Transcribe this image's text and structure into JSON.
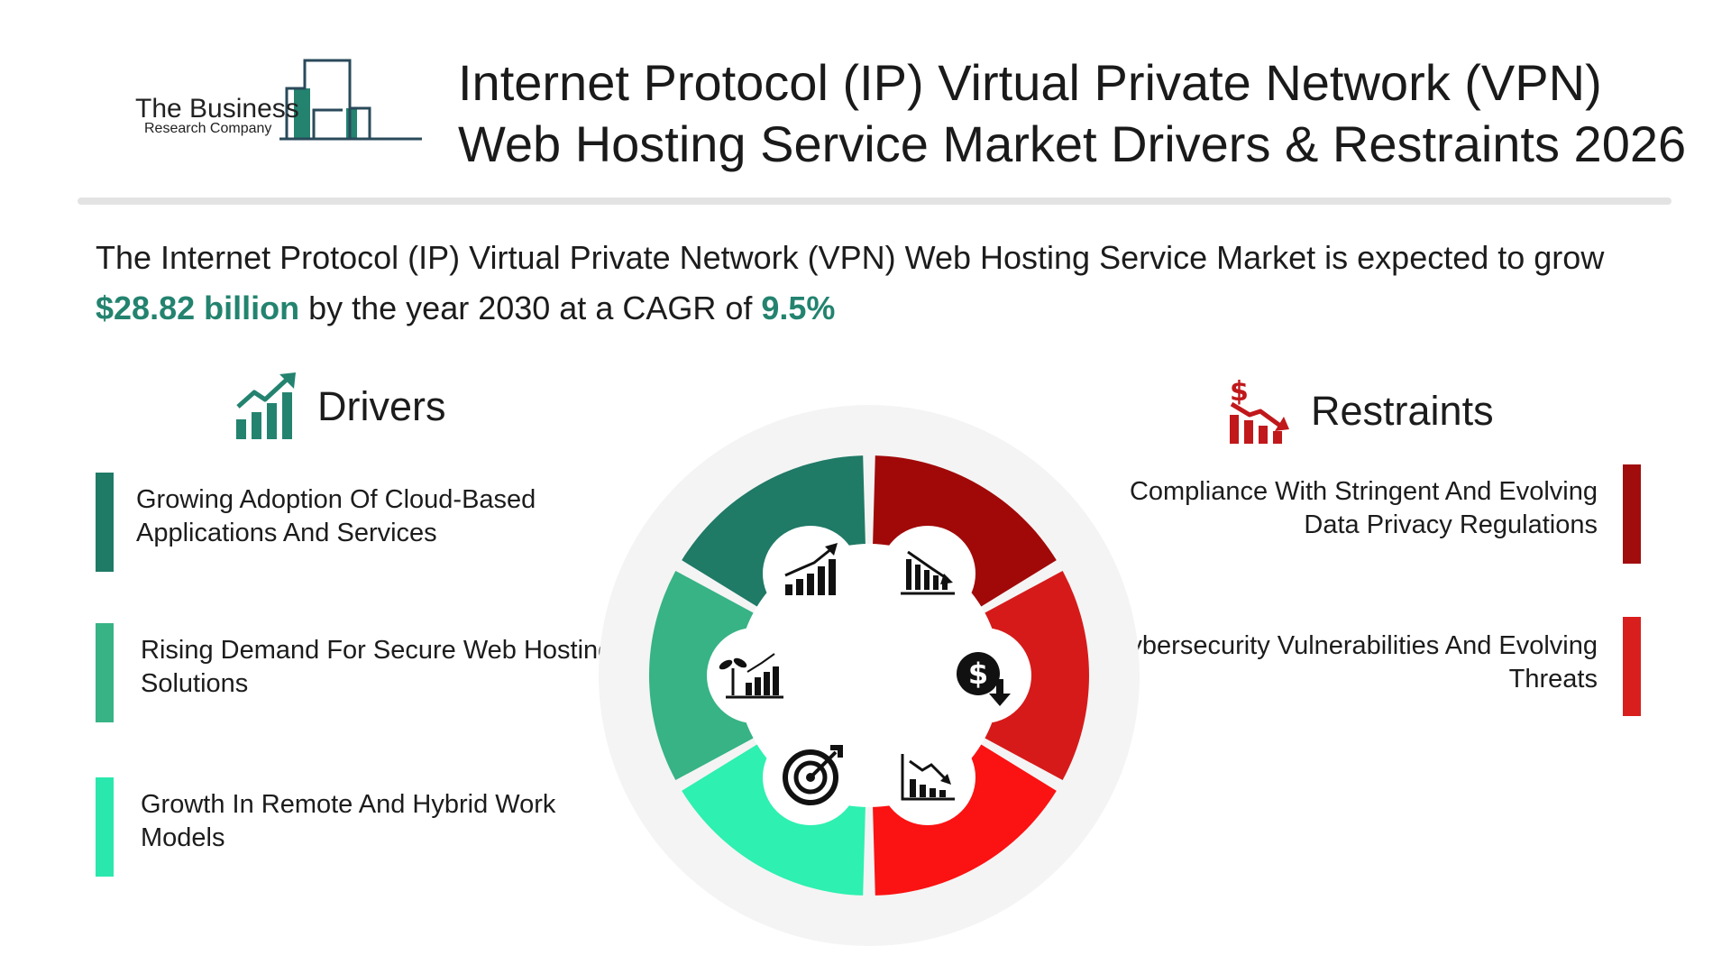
{
  "logo": {
    "line1": "The Business",
    "line2": "Research Company"
  },
  "title": {
    "line1": "Internet Protocol (IP) Virtual Private Network (VPN)",
    "line2": "Web Hosting Service Market Drivers & Restraints 2026"
  },
  "summary": {
    "text_before": "The Internet Protocol (IP) Virtual Private Network (VPN) Web Hosting Service Market is expected to grow ",
    "value": "$28.82 billion",
    "text_middle": " by the year 2030 at a CAGR of ",
    "cagr": "9.5%"
  },
  "drivers": {
    "heading": "Drivers",
    "icon": "growth-chart-icon",
    "items": [
      {
        "label": "Growing Adoption Of Cloud-Based Applications And Services",
        "color": "#1f7a66"
      },
      {
        "label": "Rising Demand For Secure Web Hosting Solutions",
        "color": "#37b385"
      },
      {
        "label": "Growth In Remote And Hybrid Work Models",
        "color": "#2ae7ad"
      }
    ]
  },
  "restraints": {
    "heading": "Restraints",
    "icon": "dollar-decline-chart-icon",
    "items": [
      {
        "label": "Compliance With Stringent And Evolving Data Privacy Regulations",
        "color": "#a10d0d"
      },
      {
        "label": "Cybersecurity Vulnerabilities And Evolving Threats",
        "color": "#d91e1e"
      }
    ]
  },
  "wheel": {
    "segment_colors": [
      "#a10909",
      "#d61a1a",
      "#fb1212",
      "#2ef0b0",
      "#37b385",
      "#1f7a66"
    ],
    "icons": [
      "declining-bar-chart-icon",
      "dollar-down-icon",
      "downtrend-chart-icon",
      "target-icon",
      "plant-growth-chart-icon",
      "rising-bar-chart-icon"
    ]
  },
  "colors": {
    "accent_green": "#23836f",
    "accent_red": "#c0181b",
    "divider": "#e3e3e3"
  }
}
